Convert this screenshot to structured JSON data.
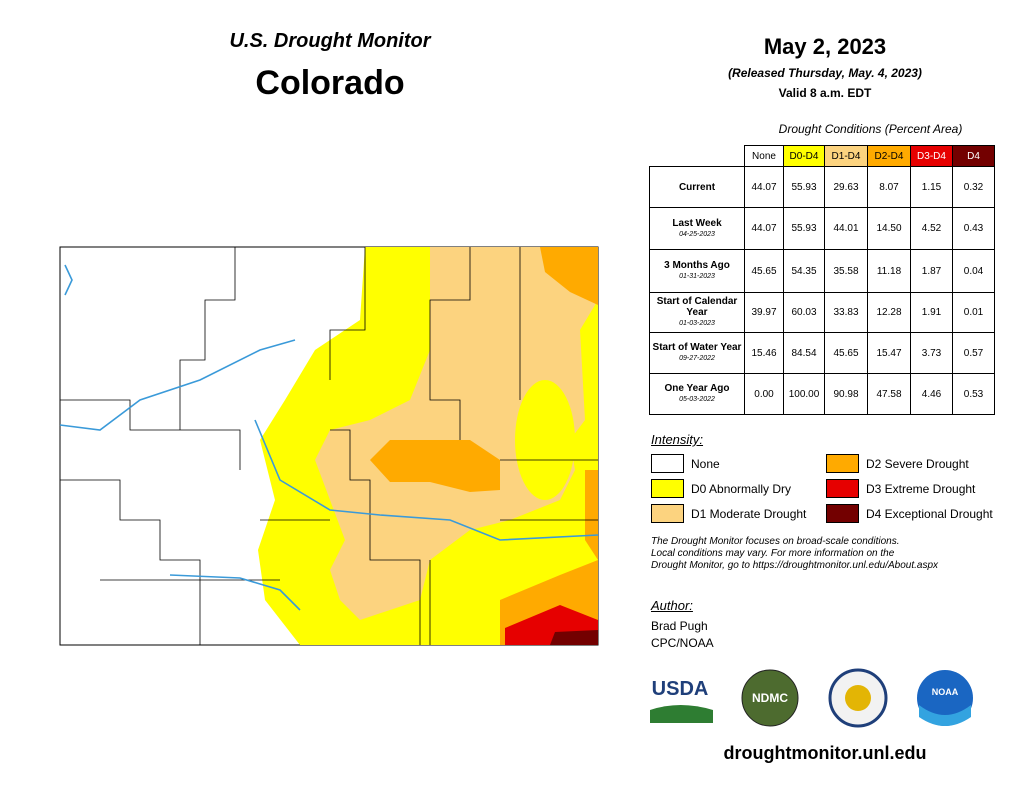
{
  "header": {
    "title": "U.S. Drought Monitor",
    "region": "Colorado"
  },
  "date": {
    "title": "May 2, 2023",
    "released": "(Released Thursday, May. 4, 2023)",
    "valid": "Valid 8 a.m. EDT"
  },
  "table": {
    "caption": "Drought Conditions (Percent Area)",
    "columns": [
      {
        "label": "None",
        "color": "#ffffff",
        "text": "#000000"
      },
      {
        "label": "D0-D4",
        "color": "#ffff00",
        "text": "#000000"
      },
      {
        "label": "D1-D4",
        "color": "#fcd37f",
        "text": "#000000"
      },
      {
        "label": "D2-D4",
        "color": "#ffaa00",
        "text": "#000000"
      },
      {
        "label": "D3-D4",
        "color": "#e60000",
        "text": "#ffffff"
      },
      {
        "label": "D4",
        "color": "#730000",
        "text": "#ffffff"
      }
    ],
    "rows": [
      {
        "label": "Current",
        "values": [
          "44.07",
          "55.93",
          "29.63",
          "8.07",
          "1.15",
          "0.32"
        ]
      },
      {
        "label": "Last Week",
        "date": "04-25-2023",
        "values": [
          "44.07",
          "55.93",
          "44.01",
          "14.50",
          "4.52",
          "0.43"
        ]
      },
      {
        "label": "3 Months Ago",
        "date": "01-31-2023",
        "values": [
          "45.65",
          "54.35",
          "35.58",
          "11.18",
          "1.87",
          "0.04"
        ]
      },
      {
        "label": "Start of Calendar Year",
        "date": "01-03-2023",
        "values": [
          "39.97",
          "60.03",
          "33.83",
          "12.28",
          "1.91",
          "0.01"
        ]
      },
      {
        "label": "Start of Water Year",
        "date": "09-27-2022",
        "values": [
          "15.46",
          "84.54",
          "45.65",
          "15.47",
          "3.73",
          "0.57"
        ]
      },
      {
        "label": "One Year Ago",
        "date": "05-03-2022",
        "values": [
          "0.00",
          "100.00",
          "90.98",
          "47.58",
          "4.46",
          "0.53"
        ]
      }
    ]
  },
  "legend": {
    "title": "Intensity:",
    "items": [
      {
        "label": "None",
        "color": "#ffffff"
      },
      {
        "label": "D0 Abnormally Dry",
        "color": "#ffff00"
      },
      {
        "label": "D1 Moderate Drought",
        "color": "#fcd37f"
      },
      {
        "label": "D2 Severe Drought",
        "color": "#ffaa00"
      },
      {
        "label": "D3 Extreme Drought",
        "color": "#e60000"
      },
      {
        "label": "D4 Exceptional Drought",
        "color": "#730000"
      }
    ]
  },
  "note": [
    "The Drought Monitor focuses on broad-scale conditions.",
    "Local conditions may vary. For more information on the",
    "Drought Monitor, go to https://droughtmonitor.unl.edu/About.aspx"
  ],
  "author": {
    "heading": "Author:",
    "lines": [
      "Brad Pugh",
      "CPC/NOAA"
    ]
  },
  "logos": [
    "USDA",
    "NDMC",
    "NOAA"
  ],
  "url": "droughtmonitor.unl.edu"
}
